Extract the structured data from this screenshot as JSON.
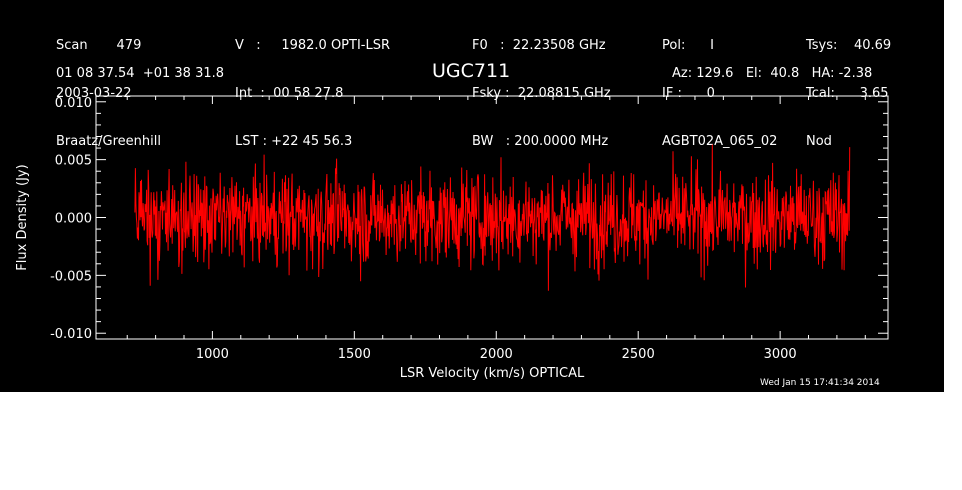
{
  "header": {
    "col1": [
      "Scan       479",
      "2003-03-22",
      "Braatz/Greenhill"
    ],
    "col2": [
      "V   :     1982.0 OPTI-LSR",
      "Int  :  00 58 27.8",
      "LST : +22 45 56.3"
    ],
    "col3": [
      "F0   :  22.23508 GHz",
      "Fsky :  22.08815 GHz",
      "BW   : 200.0000 MHz"
    ],
    "col4": [
      "Pol:      I",
      "IF :      0",
      "AGBT02A_065_02"
    ],
    "col5": [
      "Tsys:    40.69",
      "Tcal:      3.65",
      "Nod"
    ],
    "coords": "01 08 37.54  +01 38 31.8",
    "pointing": "Az: 129.6   El:  40.8   HA: -2.38"
  },
  "timestamp": "Wed Jan 15 17:41:34 2014",
  "colors": {
    "background": "#000000",
    "axes": "#ffffff",
    "trace": "#ff0000"
  },
  "chart_data": {
    "type": "line",
    "title": "UGC711",
    "xlabel": "LSR Velocity (km/s) OPTICAL",
    "ylabel": "Flux Density (Jy)",
    "xlim": [
      590,
      3380
    ],
    "ylim": [
      -0.0105,
      0.0105
    ],
    "x_range": [
      727,
      3245
    ],
    "xticks": [
      1000,
      1500,
      2000,
      2500,
      3000
    ],
    "xtick_labels": [
      "1000",
      "1500",
      "2000",
      "2500",
      "3000"
    ],
    "yticks": [
      -0.01,
      -0.005,
      0.0,
      0.005,
      0.01
    ],
    "ytick_labels": [
      "-0.010",
      "-0.005",
      "0.000",
      "0.005",
      "0.010"
    ],
    "series": [
      {
        "values_description": "noise-like spectrum, rms ~0.002 Jy, peaks ~ +/-0.007 Jy, no significant line detected"
      }
    ]
  }
}
